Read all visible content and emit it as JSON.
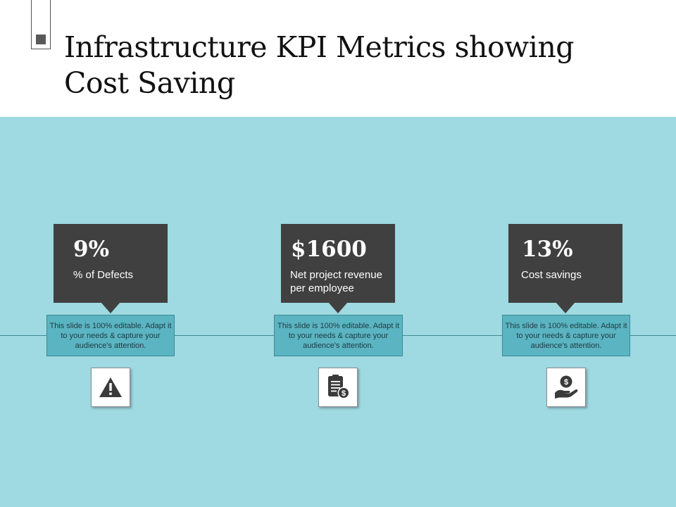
{
  "slide": {
    "title": "Infrastructure KPI Metrics showing Cost Saving"
  },
  "kpis": [
    {
      "value": "9%",
      "label": "% of Defects",
      "note": "This slide is 100% editable. Adapt it to your needs & capture your audience’s attention.",
      "icon": "warning-icon"
    },
    {
      "value": "$1600",
      "label": "Net project revenue per employee",
      "note": "This slide is 100% editable. Adapt it to your needs & capture your audience’s attention.",
      "icon": "revenue-document-icon"
    },
    {
      "value": "13%",
      "label": "Cost savings",
      "note": "This slide is 100% editable. Adapt it to your needs & capture your audience’s attention.",
      "icon": "hand-coin-icon"
    }
  ],
  "colors": {
    "band": "#9fd9e1",
    "kpi_box": "#404040",
    "note_box": "#5bb4c2",
    "timeline": "#3e8a95"
  }
}
